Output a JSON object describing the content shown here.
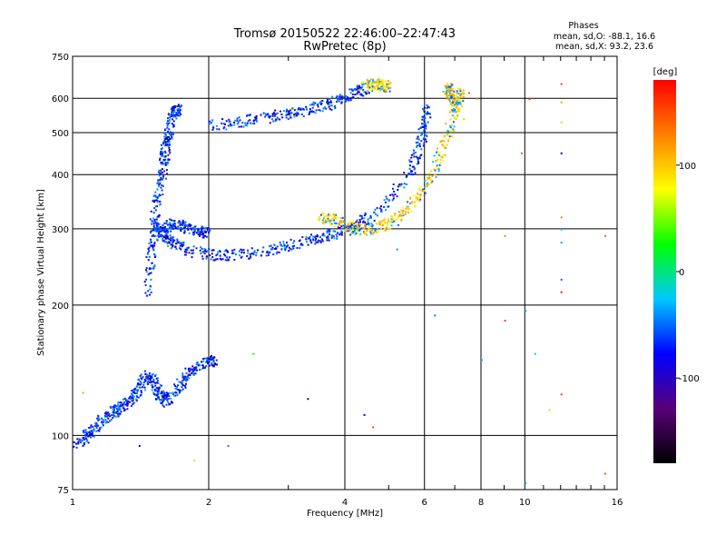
{
  "chart_data": {
    "type": "scatter",
    "title": "Tromsø 20150522 22:46:00–22:47:43",
    "subtitle": "RwPretec (8p)",
    "xlabel": "Frequency [MHz]",
    "ylabel": "Stationary phase Virtual Height [km]",
    "x_scale": "log",
    "y_scale": "log",
    "xlim": [
      1,
      16
    ],
    "ylim": [
      75,
      750
    ],
    "x_ticks": [
      1,
      2,
      4,
      6,
      8,
      10,
      16
    ],
    "x_tick_labels": [
      "1",
      "2",
      "4",
      "6",
      "8",
      "10",
      "16"
    ],
    "y_ticks": [
      75,
      100,
      200,
      300,
      400,
      500,
      600,
      750
    ],
    "y_tick_labels": [
      "75",
      "100",
      "200",
      "300",
      "400",
      "500",
      "600",
      "750"
    ],
    "grid": true,
    "stats_header": "Phases",
    "stats_lines": [
      "mean, sd,O: -88.1, 16.6",
      "mean, sd,X: 93.2, 23.6"
    ],
    "colorbar": {
      "label": "[deg]",
      "range": [
        -180,
        180
      ],
      "ticks": [
        100,
        0,
        -100
      ],
      "tick_labels": [
        "100",
        "0",
        "-100"
      ],
      "colors": [
        "#000000",
        "#5a0078",
        "#0000ff",
        "#00c8ff",
        "#00ff00",
        "#ffff00",
        "#ff8000",
        "#ff0000"
      ]
    },
    "series": [
      {
        "values_desc": "O-mode traces (phase approx -90 deg)",
        "traces": [
          {
            "x": [
              1.0,
              1.05,
              1.1,
              1.15,
              1.2,
              1.25,
              1.3,
              1.35,
              1.4,
              1.45,
              1.5,
              1.55,
              1.6,
              1.7,
              1.8,
              1.9,
              2.0,
              2.05
            ],
            "y": [
              95,
              98,
              103,
              108,
              112,
              115,
              118,
              122,
              130,
              138,
              135,
              125,
              120,
              128,
              140,
              145,
              150,
              148
            ]
          },
          {
            "x": [
              1.45,
              1.48,
              1.5,
              1.52,
              1.55,
              1.58,
              1.6,
              1.62,
              1.65,
              1.68,
              1.7
            ],
            "y": [
              210,
              250,
              290,
              330,
              380,
              420,
              460,
              500,
              540,
              570,
              560
            ]
          },
          {
            "x": [
              1.55,
              1.6,
              1.7,
              1.8,
              2.0,
              2.3,
              2.7,
              3.0,
              3.3,
              3.6,
              3.9,
              4.2,
              4.5,
              5.0,
              5.5,
              5.8,
              6.0,
              6.05
            ],
            "y": [
              300,
              285,
              275,
              268,
              262,
              262,
              268,
              275,
              283,
              290,
              296,
              305,
              320,
              350,
              400,
              460,
              520,
              580
            ]
          },
          {
            "x": [
              2.0,
              2.3,
              2.7,
              3.0,
              3.3,
              3.6,
              3.9,
              4.2,
              4.5
            ],
            "y": [
              520,
              530,
              545,
              555,
              565,
              580,
              600,
              620,
              640
            ]
          },
          {
            "x": [
              1.5,
              1.6,
              1.7,
              1.8,
              1.9,
              2.0
            ],
            "y": [
              300,
              305,
              310,
              300,
              298,
              295
            ]
          }
        ]
      },
      {
        "values_desc": "X-mode traces (phase approx +95 deg)",
        "traces": [
          {
            "x": [
              3.5,
              3.8,
              4.0,
              4.3,
              4.6,
              5.0,
              5.4,
              5.8,
              6.2,
              6.5,
              6.8,
              7.0,
              7.2
            ],
            "y": [
              320,
              315,
              305,
              300,
              300,
              310,
              330,
              360,
              400,
              450,
              510,
              570,
              630
            ]
          },
          {
            "x": [
              4.4,
              4.6,
              4.8,
              5.0
            ],
            "y": [
              640,
              650,
              645,
              640
            ]
          },
          {
            "x": [
              6.7,
              6.8,
              6.9,
              7.0
            ],
            "y": [
              640,
              620,
              600,
              580
            ]
          }
        ]
      }
    ],
    "scattered_points": [
      {
        "x": 9.0,
        "y": 290,
        "c": "#ff8000"
      },
      {
        "x": 9.0,
        "y": 185,
        "c": "#ff4000"
      },
      {
        "x": 9.8,
        "y": 450,
        "c": "#ff6000"
      },
      {
        "x": 10.2,
        "y": 600,
        "c": "#ff4000"
      },
      {
        "x": 10.0,
        "y": 195,
        "c": "#00c0ff"
      },
      {
        "x": 10.0,
        "y": 78,
        "c": "#00c0ff"
      },
      {
        "x": 10.5,
        "y": 155,
        "c": "#00c8c8"
      },
      {
        "x": 12.0,
        "y": 650,
        "c": "#ff4000"
      },
      {
        "x": 12.0,
        "y": 590,
        "c": "#ffa000"
      },
      {
        "x": 12.0,
        "y": 530,
        "c": "#ffd000"
      },
      {
        "x": 12.0,
        "y": 450,
        "c": "#0000c0"
      },
      {
        "x": 12.0,
        "y": 320,
        "c": "#ff8000"
      },
      {
        "x": 12.0,
        "y": 300,
        "c": "#00c0ff"
      },
      {
        "x": 12.0,
        "y": 280,
        "c": "#00a0ff"
      },
      {
        "x": 12.0,
        "y": 230,
        "c": "#0060ff"
      },
      {
        "x": 12.0,
        "y": 215,
        "c": "#ff2000"
      },
      {
        "x": 12.0,
        "y": 125,
        "c": "#ff4000"
      },
      {
        "x": 11.3,
        "y": 115,
        "c": "#ffd000"
      },
      {
        "x": 15.0,
        "y": 290,
        "c": "#ff6000"
      },
      {
        "x": 15.0,
        "y": 82,
        "c": "#ff6000"
      },
      {
        "x": 7.5,
        "y": 620,
        "c": "#ff6000"
      },
      {
        "x": 7.8,
        "y": 600,
        "c": "#ffb000"
      },
      {
        "x": 6.3,
        "y": 190,
        "c": "#0080ff"
      },
      {
        "x": 4.6,
        "y": 105,
        "c": "#ff4000"
      },
      {
        "x": 4.4,
        "y": 112,
        "c": "#0000c0"
      },
      {
        "x": 3.3,
        "y": 122,
        "c": "#200060"
      },
      {
        "x": 1.05,
        "y": 126,
        "c": "#ffa000"
      },
      {
        "x": 1.85,
        "y": 88,
        "c": "#ffd000"
      },
      {
        "x": 1.4,
        "y": 95,
        "c": "#0000ff"
      },
      {
        "x": 2.5,
        "y": 155,
        "c": "#00ff00"
      },
      {
        "x": 2.2,
        "y": 95,
        "c": "#0080ff"
      },
      {
        "x": 5.2,
        "y": 270,
        "c": "#00a0ff"
      },
      {
        "x": 6.8,
        "y": 560,
        "c": "#ffa000"
      },
      {
        "x": 7.3,
        "y": 540,
        "c": "#ffd000"
      },
      {
        "x": 6.6,
        "y": 480,
        "c": "#ffcc00"
      },
      {
        "x": 8.0,
        "y": 150,
        "c": "#00c0ff"
      }
    ]
  }
}
